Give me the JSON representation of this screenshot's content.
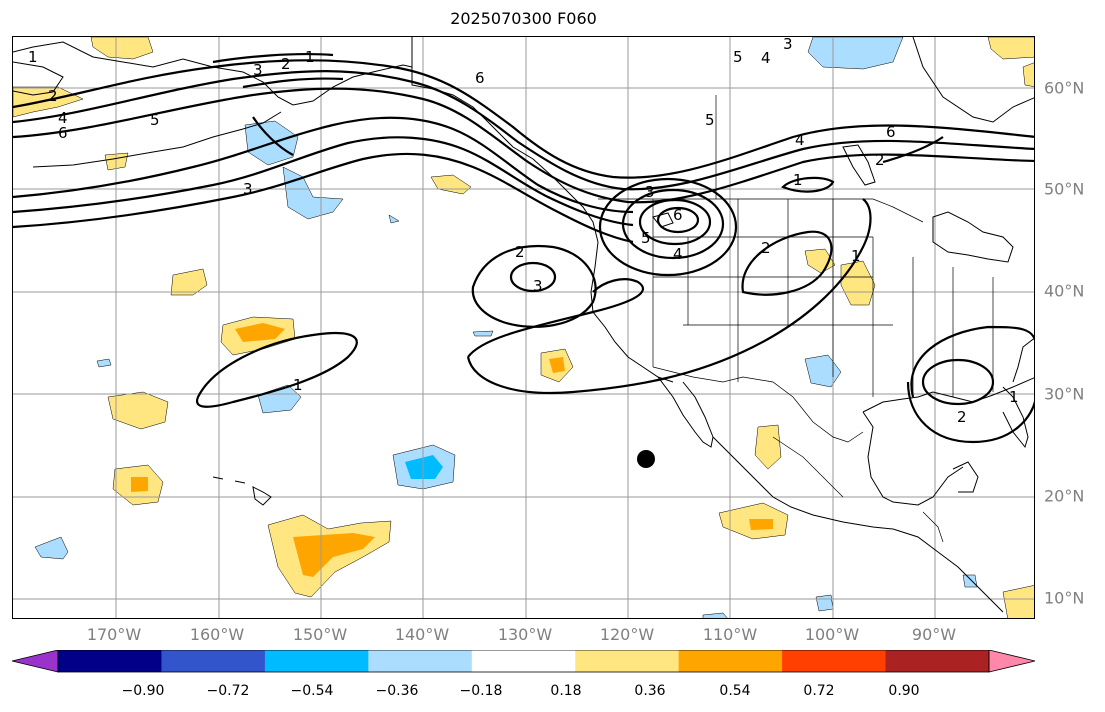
{
  "title": "2025070300 F060",
  "longitude_labels": [
    "170°W",
    "160°W",
    "150°W",
    "140°W",
    "130°W",
    "120°W",
    "110°W",
    "100°W",
    "90°W"
  ],
  "latitude_labels": [
    "60°N",
    "50°N",
    "40°N",
    "30°N",
    "20°N",
    "10°N"
  ],
  "colorbar": {
    "tick_labels": [
      "−0.90",
      "−0.72",
      "−0.54",
      "−0.36",
      "−0.18",
      "0.18",
      "0.36",
      "0.54",
      "0.72",
      "0.90"
    ],
    "colors": [
      "#9933cc",
      "#000088",
      "#3355cc",
      "#00bbff",
      "#aaddff",
      "#ffffff",
      "#ffe680",
      "#ffa500",
      "#ff4000",
      "#aa2222",
      "#ff88aa"
    ]
  },
  "contour_labels": [
    "1",
    "2",
    "3",
    "4",
    "5",
    "6"
  ],
  "marker": {
    "name": "black-dot",
    "lon": -118,
    "lat": 23.5
  }
}
